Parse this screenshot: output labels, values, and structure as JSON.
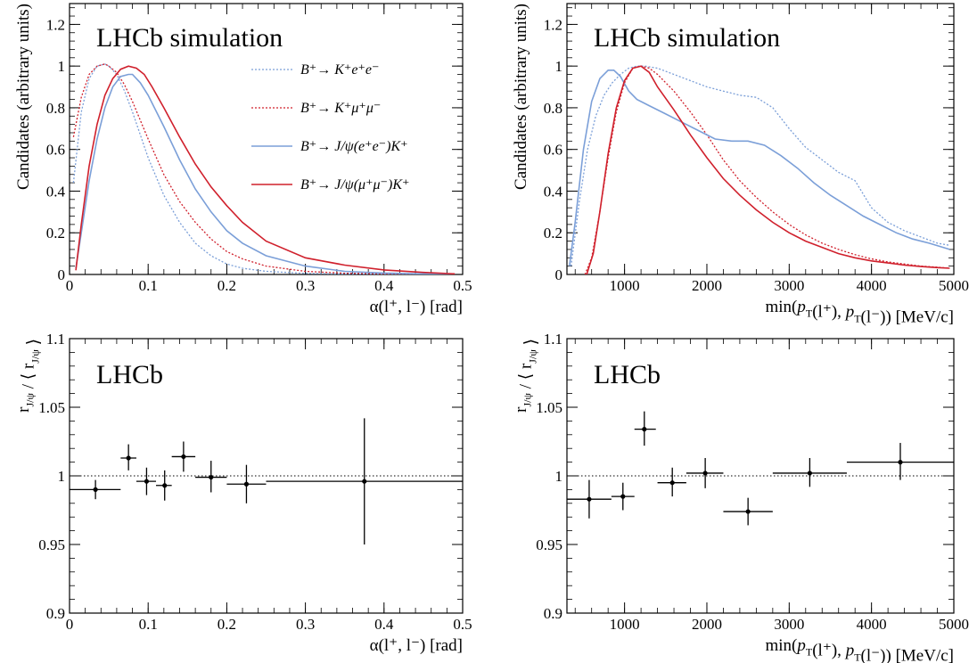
{
  "chart_data": [
    {
      "type": "line",
      "panel": "top-left",
      "label": "LHCb simulation",
      "xlabel": "α(l⁺, l⁻) [rad]",
      "ylabel": "Candidates (arbitrary units)",
      "xlim": [
        0,
        0.5
      ],
      "ylim": [
        0,
        1.3
      ],
      "xticks": [
        0,
        0.1,
        0.2,
        0.3,
        0.4,
        0.5
      ],
      "xticklabels": [
        "0",
        "0.1",
        "0.2",
        "0.3",
        "0.4",
        "0.5"
      ],
      "yticks": [
        0,
        0.2,
        0.4,
        0.6,
        0.8,
        1.0,
        1.2
      ],
      "yticklabels": [
        "0",
        "0.2",
        "0.4",
        "0.6",
        "0.8",
        "1",
        "1.2"
      ],
      "legend_position": "top-right",
      "series": [
        {
          "name": "B⁺→ K⁺e⁺e⁻",
          "color": "#7b9fd8",
          "dash": "dotted",
          "x": [
            0.005,
            0.015,
            0.025,
            0.035,
            0.045,
            0.05,
            0.06,
            0.07,
            0.08,
            0.09,
            0.1,
            0.12,
            0.14,
            0.16,
            0.18,
            0.2,
            0.22,
            0.25,
            0.3,
            0.35,
            0.4,
            0.45,
            0.49
          ],
          "y": [
            0.44,
            0.78,
            0.94,
            1.0,
            1.01,
            1.0,
            0.96,
            0.88,
            0.78,
            0.67,
            0.56,
            0.38,
            0.25,
            0.15,
            0.09,
            0.05,
            0.03,
            0.015,
            0.005,
            0.002,
            0.001,
            0.0,
            0.0
          ]
        },
        {
          "name": "B⁺→ K⁺μ⁺μ⁻",
          "color": "#d0202c",
          "dash": "dotted",
          "x": [
            0.005,
            0.015,
            0.025,
            0.035,
            0.045,
            0.05,
            0.06,
            0.07,
            0.08,
            0.09,
            0.1,
            0.12,
            0.14,
            0.16,
            0.18,
            0.2,
            0.22,
            0.25,
            0.3,
            0.35,
            0.4,
            0.45,
            0.49
          ],
          "y": [
            0.66,
            0.85,
            0.96,
            1.0,
            1.01,
            1.0,
            0.97,
            0.91,
            0.83,
            0.74,
            0.65,
            0.48,
            0.35,
            0.25,
            0.17,
            0.11,
            0.075,
            0.04,
            0.015,
            0.006,
            0.003,
            0.001,
            0.0
          ]
        },
        {
          "name": "B⁺→ J/ψ(e⁺e⁻)K⁺",
          "color": "#7b9fd8",
          "dash": "solid",
          "x": [
            0.008,
            0.015,
            0.025,
            0.035,
            0.045,
            0.055,
            0.065,
            0.075,
            0.08,
            0.09,
            0.1,
            0.12,
            0.14,
            0.16,
            0.18,
            0.2,
            0.22,
            0.25,
            0.3,
            0.35,
            0.4,
            0.45,
            0.49
          ],
          "y": [
            0.03,
            0.2,
            0.45,
            0.65,
            0.8,
            0.9,
            0.95,
            0.96,
            0.96,
            0.92,
            0.86,
            0.71,
            0.55,
            0.41,
            0.3,
            0.21,
            0.15,
            0.09,
            0.04,
            0.015,
            0.007,
            0.003,
            0.001
          ]
        },
        {
          "name": "B⁺→ J/ψ(μ⁺μ⁻)K⁺",
          "color": "#d0202c",
          "dash": "solid",
          "x": [
            0.008,
            0.015,
            0.025,
            0.035,
            0.045,
            0.055,
            0.065,
            0.075,
            0.085,
            0.095,
            0.105,
            0.12,
            0.14,
            0.16,
            0.18,
            0.2,
            0.22,
            0.25,
            0.3,
            0.35,
            0.4,
            0.45,
            0.49
          ],
          "y": [
            0.02,
            0.24,
            0.52,
            0.72,
            0.86,
            0.94,
            0.985,
            1.0,
            0.99,
            0.96,
            0.9,
            0.8,
            0.66,
            0.53,
            0.42,
            0.33,
            0.25,
            0.16,
            0.08,
            0.045,
            0.022,
            0.01,
            0.003
          ]
        }
      ]
    },
    {
      "type": "line",
      "panel": "top-right",
      "label": "LHCb simulation",
      "xlabel": "min(p_T(l⁺), p_T(l⁻)) [MeV/c]",
      "ylabel": "Candidates (arbitrary units)",
      "xlim": [
        300,
        5000
      ],
      "ylim": [
        0,
        1.3
      ],
      "xticks": [
        1000,
        2000,
        3000,
        4000,
        5000
      ],
      "xticklabels": [
        "1000",
        "2000",
        "3000",
        "4000",
        "5000"
      ],
      "yticks": [
        0,
        0.2,
        0.4,
        0.6,
        0.8,
        1.0,
        1.2
      ],
      "yticklabels": [
        "0",
        "0.2",
        "0.4",
        "0.6",
        "0.8",
        "1",
        "1.2"
      ],
      "series": [
        {
          "name": "B⁺→ K⁺e⁺e⁻",
          "color": "#7b9fd8",
          "dash": "dotted",
          "x": [
            350,
            450,
            550,
            650,
            750,
            850,
            950,
            1050,
            1150,
            1250,
            1400,
            1600,
            1800,
            2000,
            2200,
            2400,
            2600,
            2800,
            3000,
            3200,
            3400,
            3600,
            3800,
            4000,
            4200,
            4400,
            4600,
            4800,
            4950
          ],
          "y": [
            0.04,
            0.35,
            0.6,
            0.76,
            0.86,
            0.92,
            0.96,
            0.99,
            1.0,
            1.0,
            0.99,
            0.96,
            0.93,
            0.9,
            0.88,
            0.86,
            0.85,
            0.8,
            0.7,
            0.61,
            0.55,
            0.49,
            0.45,
            0.32,
            0.25,
            0.21,
            0.18,
            0.15,
            0.14
          ]
        },
        {
          "name": "B⁺→ K⁺μ⁺μ⁻",
          "color": "#d0202c",
          "dash": "dotted",
          "x": [
            520,
            600,
            700,
            800,
            900,
            1000,
            1100,
            1200,
            1300,
            1400,
            1600,
            1800,
            2000,
            2200,
            2400,
            2600,
            2800,
            3000,
            3200,
            3400,
            3600,
            3800,
            4000,
            4200,
            4400,
            4600,
            4800,
            4950
          ],
          "y": [
            0.0,
            0.08,
            0.3,
            0.56,
            0.78,
            0.92,
            0.99,
            1.0,
            0.99,
            0.96,
            0.88,
            0.78,
            0.67,
            0.55,
            0.45,
            0.37,
            0.3,
            0.24,
            0.19,
            0.15,
            0.12,
            0.095,
            0.075,
            0.06,
            0.05,
            0.04,
            0.035,
            0.03
          ]
        },
        {
          "name": "B⁺→ J/ψ(e⁺e⁻)K⁺",
          "color": "#7b9fd8",
          "dash": "solid",
          "x": [
            330,
            400,
            500,
            600,
            700,
            800,
            870,
            950,
            1050,
            1150,
            1300,
            1500,
            1700,
            1900,
            2100,
            2300,
            2500,
            2700,
            2900,
            3100,
            3300,
            3500,
            3700,
            3900,
            4100,
            4300,
            4500,
            4700,
            4950
          ],
          "y": [
            0.04,
            0.25,
            0.6,
            0.83,
            0.94,
            0.98,
            0.98,
            0.95,
            0.88,
            0.84,
            0.81,
            0.77,
            0.73,
            0.69,
            0.65,
            0.64,
            0.64,
            0.62,
            0.57,
            0.51,
            0.44,
            0.38,
            0.33,
            0.28,
            0.24,
            0.2,
            0.17,
            0.15,
            0.12
          ]
        },
        {
          "name": "B⁺→ J/ψ(μ⁺μ⁻)K⁺",
          "color": "#d0202c",
          "dash": "solid",
          "x": [
            540,
            620,
            700,
            800,
            900,
            1000,
            1100,
            1200,
            1300,
            1400,
            1600,
            1800,
            2000,
            2200,
            2400,
            2600,
            2800,
            3000,
            3200,
            3400,
            3600,
            3800,
            4000,
            4200,
            4400,
            4600,
            4800,
            4950
          ],
          "y": [
            0.0,
            0.1,
            0.3,
            0.58,
            0.8,
            0.93,
            0.99,
            1.0,
            0.97,
            0.9,
            0.79,
            0.67,
            0.56,
            0.46,
            0.38,
            0.31,
            0.25,
            0.2,
            0.16,
            0.13,
            0.1,
            0.08,
            0.065,
            0.055,
            0.045,
            0.038,
            0.033,
            0.03
          ]
        }
      ]
    },
    {
      "type": "scatter",
      "panel": "bottom-left",
      "label": "LHCb",
      "xlabel": "α(l⁺, l⁻) [rad]",
      "ylabel": "r_J/ψ / ⟨ r_J/ψ ⟩",
      "xlim": [
        0,
        0.5
      ],
      "ylim": [
        0.9,
        1.1
      ],
      "xticks": [
        0,
        0.1,
        0.2,
        0.3,
        0.4,
        0.5
      ],
      "xticklabels": [
        "0",
        "0.1",
        "0.2",
        "0.3",
        "0.4",
        "0.5"
      ],
      "yticks": [
        0.9,
        0.95,
        1.0,
        1.05,
        1.1
      ],
      "yticklabels": [
        "0.9",
        "0.95",
        "1",
        "1.05",
        "1.1"
      ],
      "reference_line": 1.0,
      "points": [
        {
          "x": 0.033,
          "xlo": 0.0,
          "xhi": 0.065,
          "y": 0.99,
          "ylo": 0.983,
          "yhi": 0.997
        },
        {
          "x": 0.075,
          "xlo": 0.065,
          "xhi": 0.085,
          "y": 1.013,
          "ylo": 1.004,
          "yhi": 1.023
        },
        {
          "x": 0.098,
          "xlo": 0.085,
          "xhi": 0.11,
          "y": 0.996,
          "ylo": 0.986,
          "yhi": 1.006
        },
        {
          "x": 0.121,
          "xlo": 0.11,
          "xhi": 0.13,
          "y": 0.993,
          "ylo": 0.982,
          "yhi": 1.004
        },
        {
          "x": 0.145,
          "xlo": 0.13,
          "xhi": 0.16,
          "y": 1.014,
          "ylo": 1.003,
          "yhi": 1.025
        },
        {
          "x": 0.18,
          "xlo": 0.16,
          "xhi": 0.2,
          "y": 0.999,
          "ylo": 0.988,
          "yhi": 1.011
        },
        {
          "x": 0.225,
          "xlo": 0.2,
          "xhi": 0.25,
          "y": 0.994,
          "ylo": 0.98,
          "yhi": 1.008
        },
        {
          "x": 0.375,
          "xlo": 0.25,
          "xhi": 0.5,
          "y": 0.996,
          "ylo": 0.95,
          "yhi": 1.042
        }
      ]
    },
    {
      "type": "scatter",
      "panel": "bottom-right",
      "label": "LHCb",
      "xlabel": "min(p_T(l⁺), p_T(l⁻)) [MeV/c]",
      "ylabel": "r_J/ψ / ⟨ r_J/ψ ⟩",
      "xlim": [
        300,
        5000
      ],
      "ylim": [
        0.9,
        1.1
      ],
      "xticks": [
        1000,
        2000,
        3000,
        4000,
        5000
      ],
      "xticklabels": [
        "1000",
        "2000",
        "3000",
        "4000",
        "5000"
      ],
      "yticks": [
        0.9,
        0.95,
        1.0,
        1.05,
        1.1
      ],
      "yticklabels": [
        "0.9",
        "0.95",
        "1",
        "1.05",
        "1.1"
      ],
      "reference_line": 1.0,
      "points": [
        {
          "x": 570,
          "xlo": 300,
          "xhi": 840,
          "y": 0.983,
          "ylo": 0.969,
          "yhi": 0.997
        },
        {
          "x": 980,
          "xlo": 840,
          "xhi": 1120,
          "y": 0.985,
          "ylo": 0.975,
          "yhi": 0.995
        },
        {
          "x": 1240,
          "xlo": 1120,
          "xhi": 1380,
          "y": 1.034,
          "ylo": 1.022,
          "yhi": 1.047
        },
        {
          "x": 1580,
          "xlo": 1400,
          "xhi": 1750,
          "y": 0.995,
          "ylo": 0.985,
          "yhi": 1.006
        },
        {
          "x": 1980,
          "xlo": 1750,
          "xhi": 2200,
          "y": 1.002,
          "ylo": 0.991,
          "yhi": 1.013
        },
        {
          "x": 2500,
          "xlo": 2200,
          "xhi": 2800,
          "y": 0.974,
          "ylo": 0.964,
          "yhi": 0.984
        },
        {
          "x": 3250,
          "xlo": 2800,
          "xhi": 3700,
          "y": 1.002,
          "ylo": 0.992,
          "yhi": 1.013
        },
        {
          "x": 4350,
          "xlo": 3700,
          "xhi": 5000,
          "y": 1.01,
          "ylo": 0.997,
          "yhi": 1.024
        }
      ]
    }
  ]
}
